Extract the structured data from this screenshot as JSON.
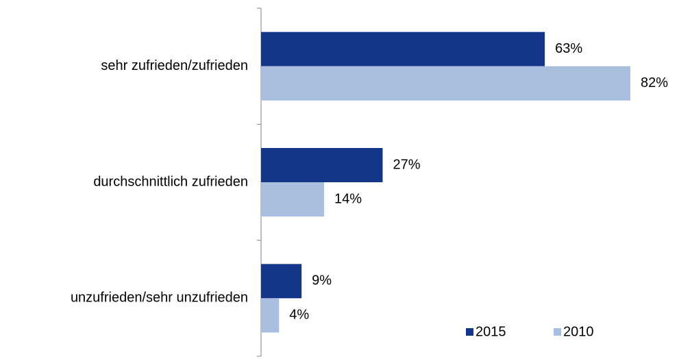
{
  "chart_data": {
    "type": "bar",
    "orientation": "horizontal",
    "categories": [
      "sehr zufrieden/zufrieden",
      "durchschnittlich zufrieden",
      "unzufrieden/sehr unzufrieden"
    ],
    "series": [
      {
        "name": "2015",
        "color": "#14368a",
        "values": [
          63,
          27,
          9
        ],
        "value_labels": [
          "63%",
          "27%",
          "9%"
        ]
      },
      {
        "name": "2010",
        "color": "#a9bfe0",
        "values": [
          82,
          14,
          4
        ],
        "value_labels": [
          "82%",
          "14%",
          "4%"
        ]
      }
    ],
    "legend": "lower right"
  }
}
